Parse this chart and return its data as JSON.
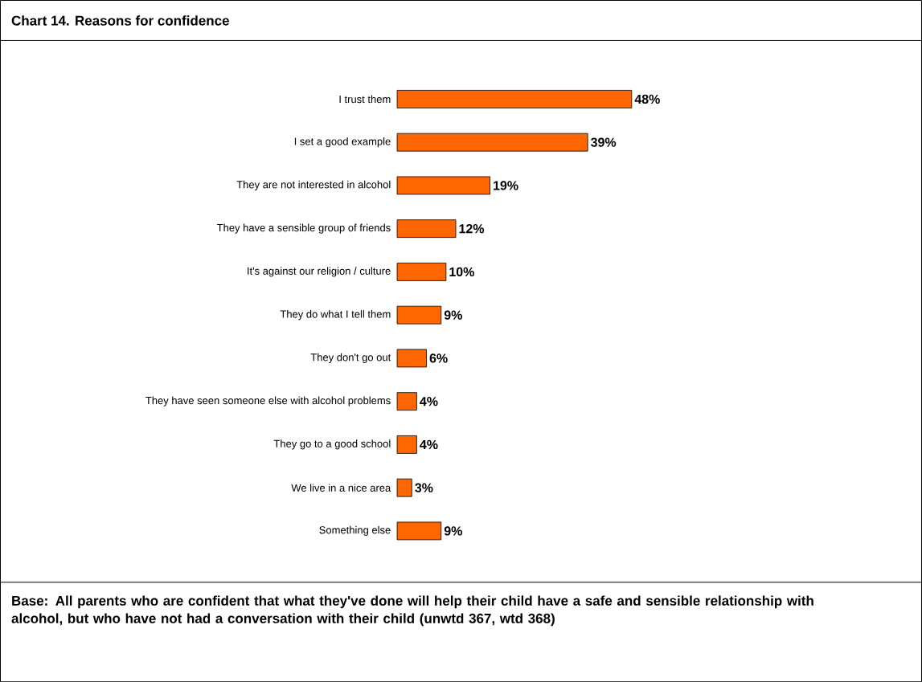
{
  "chart_data": {
    "type": "bar",
    "orientation": "horizontal",
    "title": "Chart 14.    Reasons for confidence",
    "categories": [
      "I trust them",
      "I set a good example",
      "They are not interested in alcohol",
      "They have a sensible group of friends",
      "It's against our religion / culture",
      "They do what I tell them",
      "They don't go out",
      "They have seen someone else with alcohol problems",
      "They go to a good school",
      "We live in a nice area",
      "Something else"
    ],
    "values": [
      48,
      39,
      19,
      12,
      10,
      9,
      6,
      4,
      4,
      3,
      9
    ],
    "value_labels": [
      "48%",
      "39%",
      "19%",
      "12%",
      "10%",
      "9%",
      "6%",
      "4%",
      "4%",
      "3%",
      "9%"
    ],
    "color": "#ff6600",
    "annotations": [
      "Base: All parents who are confident that what they've done will help their child have a safe and sensible relationship with alcohol, but who have not had a conversation with their child (unwtd 367, wtd 368)"
    ]
  }
}
